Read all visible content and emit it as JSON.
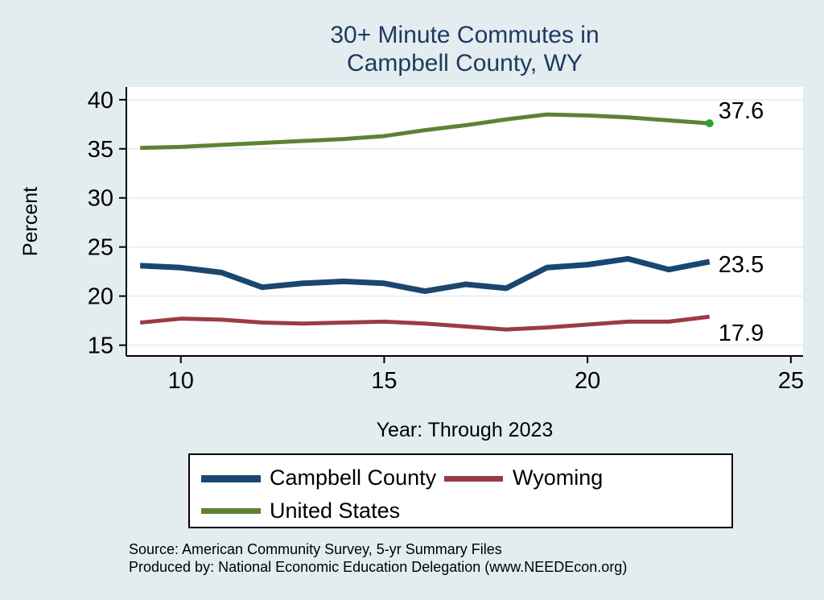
{
  "title": {
    "line1": "30+ Minute Commutes in",
    "line2": "Campbell County, WY"
  },
  "x_axis_title": "Year: Through 2023",
  "y_axis_title": "Percent",
  "source": {
    "line1": "Source: American Community Survey, 5-yr Summary Files",
    "line2": "Produced by: National Economic Education Delegation (www.NEEDEcon.org)"
  },
  "chart_data": {
    "type": "line",
    "x": [
      9,
      10,
      11,
      12,
      13,
      14,
      15,
      16,
      17,
      18,
      19,
      20,
      21,
      22,
      23
    ],
    "x_meaning": "Year: Through 2023 (9 = 2009 ... 23 = 2023)",
    "series": [
      {
        "name": "Campbell County",
        "color": "#1a476f",
        "line_width": 7,
        "values": [
          23.1,
          22.9,
          22.4,
          20.9,
          21.3,
          21.5,
          21.3,
          20.5,
          21.2,
          20.8,
          22.9,
          23.2,
          23.8,
          22.7,
          23.5
        ],
        "end_label": "23.5"
      },
      {
        "name": "Wyoming",
        "color": "#9a3c44",
        "line_width": 5,
        "values": [
          17.3,
          17.7,
          17.6,
          17.3,
          17.2,
          17.3,
          17.4,
          17.2,
          16.9,
          16.6,
          16.8,
          17.1,
          17.4,
          17.4,
          17.9
        ],
        "end_label": "17.9"
      },
      {
        "name": "United States",
        "color": "#5e8233",
        "line_width": 5,
        "values": [
          35.1,
          35.2,
          35.4,
          35.6,
          35.8,
          36.0,
          36.3,
          36.9,
          37.4,
          38.0,
          38.5,
          38.4,
          38.2,
          37.9,
          37.6
        ],
        "end_label": "37.6",
        "end_marker_color": "#2f9e2f"
      }
    ],
    "x_ticks": [
      10,
      15,
      20,
      25
    ],
    "y_ticks": [
      15,
      20,
      25,
      30,
      35,
      40
    ],
    "xlim": [
      8.66,
      25.3
    ],
    "ylim": [
      13.9,
      41.3
    ],
    "grid": "horizontal",
    "grid_color": "#e8eff3",
    "legend_position": "bottom",
    "ylabel": "Percent",
    "xlabel": "Year: Through 2023",
    "title": "30+ Minute Commutes in Campbell County, WY"
  }
}
